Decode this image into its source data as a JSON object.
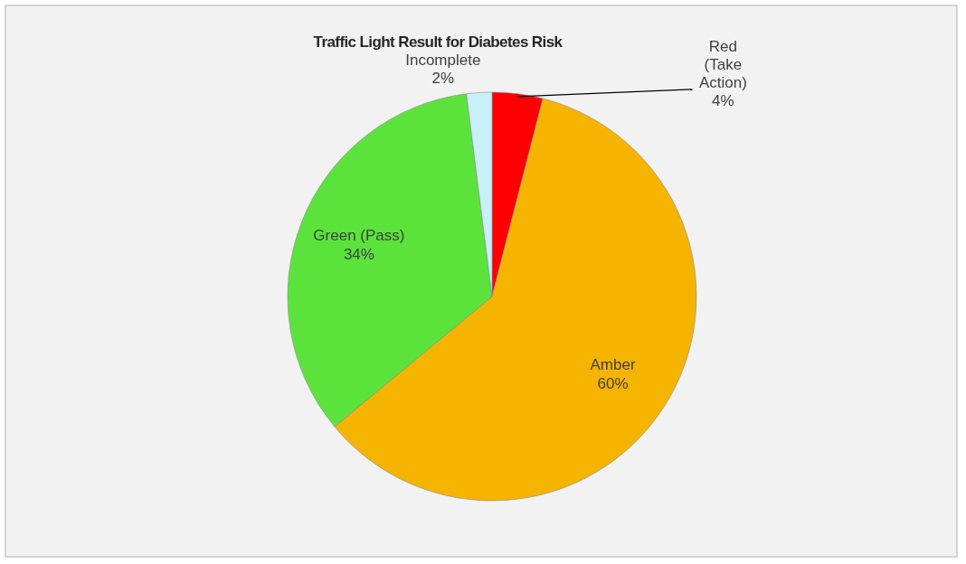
{
  "chart_data": {
    "type": "pie",
    "title": "Traffic Light Result for Diabetes Risk",
    "categories": [
      "Red (Take Action)",
      "Amber",
      "Green (Pass)",
      "Incomplete"
    ],
    "values": [
      4,
      60,
      34,
      2
    ],
    "value_labels": [
      "4%",
      "60%",
      "34%",
      "2%"
    ],
    "colors": [
      "#ff0000",
      "#f5b400",
      "#5be33c",
      "#c8f0f8"
    ]
  }
}
